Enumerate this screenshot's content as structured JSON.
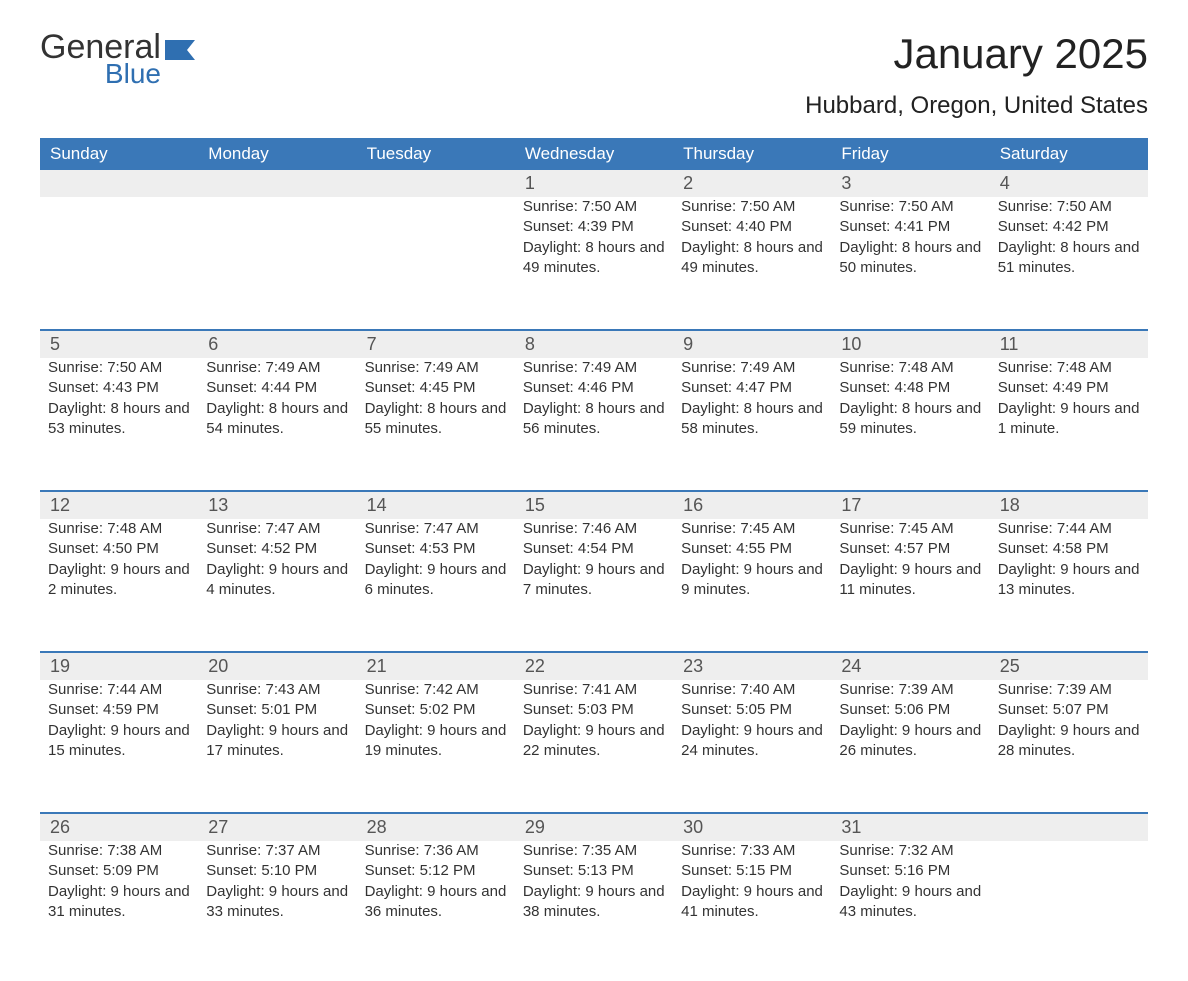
{
  "logo": {
    "text_top": "General",
    "text_bottom": "Blue",
    "color_top": "#333333",
    "color_bottom": "#2f6fb1",
    "flag_color": "#2f6fb1"
  },
  "title": "January 2025",
  "location": "Hubbard, Oregon, United States",
  "colors": {
    "header_bg": "#3a78b8",
    "header_text": "#ffffff",
    "daynum_bg": "#eeeeee",
    "daynum_text": "#555555",
    "body_text": "#333333",
    "rule": "#3a78b8",
    "page_bg": "#ffffff"
  },
  "typography": {
    "title_fontsize": 42,
    "location_fontsize": 24,
    "weekday_fontsize": 17,
    "daynum_fontsize": 18,
    "detail_fontsize": 15
  },
  "weekdays": [
    "Sunday",
    "Monday",
    "Tuesday",
    "Wednesday",
    "Thursday",
    "Friday",
    "Saturday"
  ],
  "weeks": [
    [
      {
        "n": "",
        "sunrise": "",
        "sunset": "",
        "daylight": ""
      },
      {
        "n": "",
        "sunrise": "",
        "sunset": "",
        "daylight": ""
      },
      {
        "n": "",
        "sunrise": "",
        "sunset": "",
        "daylight": ""
      },
      {
        "n": "1",
        "sunrise": "Sunrise: 7:50 AM",
        "sunset": "Sunset: 4:39 PM",
        "daylight": "Daylight: 8 hours and 49 minutes."
      },
      {
        "n": "2",
        "sunrise": "Sunrise: 7:50 AM",
        "sunset": "Sunset: 4:40 PM",
        "daylight": "Daylight: 8 hours and 49 minutes."
      },
      {
        "n": "3",
        "sunrise": "Sunrise: 7:50 AM",
        "sunset": "Sunset: 4:41 PM",
        "daylight": "Daylight: 8 hours and 50 minutes."
      },
      {
        "n": "4",
        "sunrise": "Sunrise: 7:50 AM",
        "sunset": "Sunset: 4:42 PM",
        "daylight": "Daylight: 8 hours and 51 minutes."
      }
    ],
    [
      {
        "n": "5",
        "sunrise": "Sunrise: 7:50 AM",
        "sunset": "Sunset: 4:43 PM",
        "daylight": "Daylight: 8 hours and 53 minutes."
      },
      {
        "n": "6",
        "sunrise": "Sunrise: 7:49 AM",
        "sunset": "Sunset: 4:44 PM",
        "daylight": "Daylight: 8 hours and 54 minutes."
      },
      {
        "n": "7",
        "sunrise": "Sunrise: 7:49 AM",
        "sunset": "Sunset: 4:45 PM",
        "daylight": "Daylight: 8 hours and 55 minutes."
      },
      {
        "n": "8",
        "sunrise": "Sunrise: 7:49 AM",
        "sunset": "Sunset: 4:46 PM",
        "daylight": "Daylight: 8 hours and 56 minutes."
      },
      {
        "n": "9",
        "sunrise": "Sunrise: 7:49 AM",
        "sunset": "Sunset: 4:47 PM",
        "daylight": "Daylight: 8 hours and 58 minutes."
      },
      {
        "n": "10",
        "sunrise": "Sunrise: 7:48 AM",
        "sunset": "Sunset: 4:48 PM",
        "daylight": "Daylight: 8 hours and 59 minutes."
      },
      {
        "n": "11",
        "sunrise": "Sunrise: 7:48 AM",
        "sunset": "Sunset: 4:49 PM",
        "daylight": "Daylight: 9 hours and 1 minute."
      }
    ],
    [
      {
        "n": "12",
        "sunrise": "Sunrise: 7:48 AM",
        "sunset": "Sunset: 4:50 PM",
        "daylight": "Daylight: 9 hours and 2 minutes."
      },
      {
        "n": "13",
        "sunrise": "Sunrise: 7:47 AM",
        "sunset": "Sunset: 4:52 PM",
        "daylight": "Daylight: 9 hours and 4 minutes."
      },
      {
        "n": "14",
        "sunrise": "Sunrise: 7:47 AM",
        "sunset": "Sunset: 4:53 PM",
        "daylight": "Daylight: 9 hours and 6 minutes."
      },
      {
        "n": "15",
        "sunrise": "Sunrise: 7:46 AM",
        "sunset": "Sunset: 4:54 PM",
        "daylight": "Daylight: 9 hours and 7 minutes."
      },
      {
        "n": "16",
        "sunrise": "Sunrise: 7:45 AM",
        "sunset": "Sunset: 4:55 PM",
        "daylight": "Daylight: 9 hours and 9 minutes."
      },
      {
        "n": "17",
        "sunrise": "Sunrise: 7:45 AM",
        "sunset": "Sunset: 4:57 PM",
        "daylight": "Daylight: 9 hours and 11 minutes."
      },
      {
        "n": "18",
        "sunrise": "Sunrise: 7:44 AM",
        "sunset": "Sunset: 4:58 PM",
        "daylight": "Daylight: 9 hours and 13 minutes."
      }
    ],
    [
      {
        "n": "19",
        "sunrise": "Sunrise: 7:44 AM",
        "sunset": "Sunset: 4:59 PM",
        "daylight": "Daylight: 9 hours and 15 minutes."
      },
      {
        "n": "20",
        "sunrise": "Sunrise: 7:43 AM",
        "sunset": "Sunset: 5:01 PM",
        "daylight": "Daylight: 9 hours and 17 minutes."
      },
      {
        "n": "21",
        "sunrise": "Sunrise: 7:42 AM",
        "sunset": "Sunset: 5:02 PM",
        "daylight": "Daylight: 9 hours and 19 minutes."
      },
      {
        "n": "22",
        "sunrise": "Sunrise: 7:41 AM",
        "sunset": "Sunset: 5:03 PM",
        "daylight": "Daylight: 9 hours and 22 minutes."
      },
      {
        "n": "23",
        "sunrise": "Sunrise: 7:40 AM",
        "sunset": "Sunset: 5:05 PM",
        "daylight": "Daylight: 9 hours and 24 minutes."
      },
      {
        "n": "24",
        "sunrise": "Sunrise: 7:39 AM",
        "sunset": "Sunset: 5:06 PM",
        "daylight": "Daylight: 9 hours and 26 minutes."
      },
      {
        "n": "25",
        "sunrise": "Sunrise: 7:39 AM",
        "sunset": "Sunset: 5:07 PM",
        "daylight": "Daylight: 9 hours and 28 minutes."
      }
    ],
    [
      {
        "n": "26",
        "sunrise": "Sunrise: 7:38 AM",
        "sunset": "Sunset: 5:09 PM",
        "daylight": "Daylight: 9 hours and 31 minutes."
      },
      {
        "n": "27",
        "sunrise": "Sunrise: 7:37 AM",
        "sunset": "Sunset: 5:10 PM",
        "daylight": "Daylight: 9 hours and 33 minutes."
      },
      {
        "n": "28",
        "sunrise": "Sunrise: 7:36 AM",
        "sunset": "Sunset: 5:12 PM",
        "daylight": "Daylight: 9 hours and 36 minutes."
      },
      {
        "n": "29",
        "sunrise": "Sunrise: 7:35 AM",
        "sunset": "Sunset: 5:13 PM",
        "daylight": "Daylight: 9 hours and 38 minutes."
      },
      {
        "n": "30",
        "sunrise": "Sunrise: 7:33 AM",
        "sunset": "Sunset: 5:15 PM",
        "daylight": "Daylight: 9 hours and 41 minutes."
      },
      {
        "n": "31",
        "sunrise": "Sunrise: 7:32 AM",
        "sunset": "Sunset: 5:16 PM",
        "daylight": "Daylight: 9 hours and 43 minutes."
      },
      {
        "n": "",
        "sunrise": "",
        "sunset": "",
        "daylight": ""
      }
    ]
  ]
}
